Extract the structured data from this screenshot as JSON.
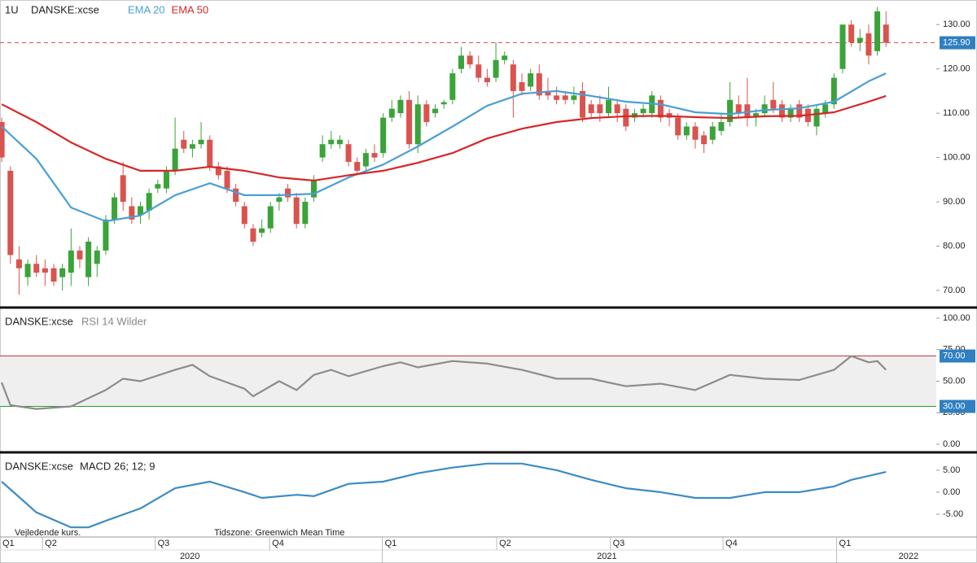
{
  "chart_data": [
    {
      "type": "candlestick",
      "period": "1U",
      "symbol": "DANSKE:xcse",
      "up_color": "#3aa33a",
      "down_color": "#d9534f",
      "xlim": [
        -0.2,
        107.8
      ],
      "ylim": [
        66.5,
        135
      ],
      "yticks": [
        {
          "value": 70,
          "label": "70.00"
        },
        {
          "value": 80,
          "label": "80.00"
        },
        {
          "value": 90,
          "label": "90.00"
        },
        {
          "value": 100,
          "label": "100.00"
        },
        {
          "value": 110,
          "label": "110.00"
        },
        {
          "value": 120,
          "label": "120.00"
        },
        {
          "value": 130,
          "label": "130.00"
        }
      ],
      "last_price": {
        "value": 125.9,
        "label": "125.90"
      },
      "last_price_color": "#2f7fc1",
      "last_price_line_color": "#d9534f",
      "candles": [
        [
          108,
          109,
          99,
          100
        ],
        [
          97,
          98,
          76,
          78
        ],
        [
          77,
          80,
          69,
          75
        ],
        [
          73,
          77,
          71,
          76
        ],
        [
          76,
          78,
          73,
          74
        ],
        [
          75,
          77,
          71,
          74
        ],
        [
          75,
          76,
          71,
          72
        ],
        [
          73,
          76,
          70,
          75
        ],
        [
          74,
          84,
          71,
          79
        ],
        [
          79,
          80,
          75,
          77
        ],
        [
          73,
          82,
          71,
          81
        ],
        [
          76,
          80,
          73,
          79
        ],
        [
          79,
          87,
          78,
          86
        ],
        [
          86,
          92,
          85,
          91
        ],
        [
          96,
          99,
          88,
          90
        ],
        [
          89,
          91,
          85,
          86
        ],
        [
          87,
          90,
          85,
          89
        ],
        [
          88,
          93,
          86,
          92
        ],
        [
          93,
          95,
          92,
          94
        ],
        [
          93,
          98,
          92,
          97
        ],
        [
          97,
          109,
          96,
          102
        ],
        [
          104,
          106,
          101,
          102
        ],
        [
          102,
          104,
          100,
          103
        ],
        [
          103,
          108,
          102,
          104
        ],
        [
          104,
          105,
          97,
          98
        ],
        [
          98,
          99,
          95,
          96
        ],
        [
          97,
          98,
          92,
          93
        ],
        [
          93,
          94,
          89,
          90
        ],
        [
          89,
          90,
          84,
          85
        ],
        [
          84,
          85,
          80,
          81
        ],
        [
          83,
          86,
          82,
          84
        ],
        [
          84,
          90,
          83,
          89
        ],
        [
          90,
          92,
          88,
          91
        ],
        [
          93,
          94,
          90,
          91
        ],
        [
          91,
          92,
          84,
          85
        ],
        [
          85,
          91,
          84,
          90
        ],
        [
          91,
          96,
          90,
          95
        ],
        [
          100,
          105,
          99,
          103
        ],
        [
          103,
          106,
          102,
          104
        ],
        [
          103,
          105,
          102,
          104
        ],
        [
          103,
          104,
          98,
          99
        ],
        [
          99,
          100,
          96,
          97
        ],
        [
          98,
          102,
          97,
          101
        ],
        [
          101,
          103,
          99,
          100
        ],
        [
          101,
          110,
          100,
          109
        ],
        [
          109,
          113,
          108,
          111
        ],
        [
          110,
          114,
          109,
          113
        ],
        [
          113,
          115,
          102,
          103
        ],
        [
          103,
          114,
          101,
          112
        ],
        [
          112,
          113,
          107,
          108
        ],
        [
          110,
          112,
          109,
          111
        ],
        [
          112,
          113,
          111,
          112.5
        ],
        [
          113,
          120,
          112,
          119
        ],
        [
          120,
          125,
          119,
          123
        ],
        [
          123,
          124,
          120,
          121
        ],
        [
          121,
          123,
          117,
          118
        ],
        [
          118,
          120,
          116,
          117
        ],
        [
          118,
          126,
          117,
          122
        ],
        [
          122,
          124,
          121,
          123
        ],
        [
          121,
          122,
          109,
          115
        ],
        [
          117,
          119,
          114,
          115
        ],
        [
          116,
          120,
          115,
          119
        ],
        [
          119,
          121,
          113,
          114
        ],
        [
          115,
          118,
          113,
          114
        ],
        [
          114,
          116,
          112,
          113
        ],
        [
          114,
          115,
          112,
          113
        ],
        [
          113,
          116,
          112,
          114
        ],
        [
          115,
          117,
          108,
          109
        ],
        [
          112,
          113,
          109,
          110
        ],
        [
          112,
          114,
          108,
          110
        ],
        [
          110,
          116,
          109,
          113
        ],
        [
          112,
          113,
          108,
          110
        ],
        [
          111,
          112,
          106,
          107
        ],
        [
          109,
          111,
          108,
          110
        ],
        [
          110,
          112,
          109,
          111
        ],
        [
          110,
          115,
          109,
          114
        ],
        [
          113,
          114,
          108,
          109
        ],
        [
          110,
          111,
          107,
          109
        ],
        [
          109,
          110,
          104,
          105
        ],
        [
          105,
          108,
          104,
          107
        ],
        [
          107,
          108,
          102,
          104
        ],
        [
          105,
          106,
          101,
          103
        ],
        [
          104,
          108,
          103,
          107
        ],
        [
          106,
          110,
          105,
          108
        ],
        [
          108,
          117,
          107,
          113
        ],
        [
          112,
          114,
          109,
          110
        ],
        [
          112,
          118,
          107,
          109
        ],
        [
          109,
          111,
          107,
          110
        ],
        [
          110,
          114,
          109,
          112
        ],
        [
          113,
          117,
          110,
          111
        ],
        [
          112,
          113,
          108,
          109
        ],
        [
          109,
          112,
          108,
          111
        ],
        [
          112,
          113,
          108,
          109
        ],
        [
          111,
          112,
          107,
          108
        ],
        [
          107,
          112,
          105,
          111
        ],
        [
          110,
          113,
          109,
          112
        ],
        [
          112,
          119,
          111,
          118
        ],
        [
          120,
          130,
          119,
          130
        ],
        [
          130,
          131,
          125,
          126
        ],
        [
          126,
          129,
          124,
          127
        ],
        [
          128,
          130,
          121,
          123
        ],
        [
          124,
          134,
          123,
          133
        ],
        [
          130,
          133,
          125,
          125.9
        ]
      ],
      "series": [
        {
          "name": "EMA 20",
          "color": "#4a9fd5",
          "x": [
            0,
            4,
            8,
            12,
            16,
            20,
            24,
            28,
            32,
            36,
            40,
            44,
            48,
            52,
            56,
            60,
            64,
            68,
            72,
            76,
            80,
            84,
            88,
            92,
            96,
            100,
            102
          ],
          "values": [
            107,
            99.7,
            88.7,
            85.6,
            86.9,
            91.5,
            94.2,
            91.5,
            91.5,
            91.8,
            95.5,
            98.4,
            102.5,
            107,
            111.7,
            114.4,
            115,
            113.9,
            112.6,
            112,
            110.2,
            109.8,
            110.7,
            111.1,
            112.6,
            117.2,
            119
          ]
        },
        {
          "name": "EMA 50",
          "color": "#d62728",
          "x": [
            0,
            4,
            8,
            12,
            16,
            20,
            24,
            28,
            32,
            36,
            40,
            44,
            48,
            52,
            56,
            60,
            64,
            68,
            72,
            76,
            80,
            84,
            88,
            92,
            96,
            100,
            102
          ],
          "values": [
            112,
            108,
            103.4,
            99.7,
            97,
            97,
            97.9,
            97,
            95.5,
            94.8,
            96,
            97,
            98.8,
            101,
            104.3,
            106.5,
            108,
            108.9,
            109.3,
            109.4,
            109.1,
            108.9,
            109.3,
            109.4,
            110.2,
            112.6,
            113.9
          ]
        }
      ]
    },
    {
      "type": "line",
      "symbol": "DANSKE:xcse",
      "title": "RSI 14 Wilder",
      "xlim": [
        -0.2,
        107.8
      ],
      "ylim": [
        -4.5,
        106.5
      ],
      "yticks": [
        {
          "value": 0,
          "label": "0.00"
        },
        {
          "value": 25,
          "label": "25.00"
        },
        {
          "value": 50,
          "label": "50.00"
        },
        {
          "value": 75,
          "label": "75.00"
        },
        {
          "value": 100,
          "label": "100.00"
        }
      ],
      "band_color": "#efefef",
      "levels": [
        {
          "value": 70,
          "label": "70.00",
          "color": "#c0392b"
        },
        {
          "value": 30,
          "label": "30.00",
          "color": "#2a9d2a"
        }
      ],
      "series": [
        {
          "color": "#8c8c8c",
          "x": [
            0,
            1,
            4,
            8,
            12,
            14,
            16,
            20,
            22,
            24,
            28,
            29,
            32,
            34,
            36,
            38,
            40,
            44,
            46,
            48,
            52,
            56,
            60,
            64,
            68,
            72,
            76,
            80,
            84,
            88,
            92,
            96,
            98,
            100,
            101,
            102
          ],
          "values": [
            49,
            31,
            28,
            30,
            43,
            52,
            50,
            59,
            63,
            54,
            44,
            38,
            50,
            43,
            55,
            59,
            54,
            62,
            65,
            61,
            66,
            64,
            59,
            52,
            52,
            46,
            48,
            43,
            55,
            52,
            51,
            59,
            70,
            65,
            66,
            59
          ]
        }
      ]
    },
    {
      "type": "line",
      "symbol": "DANSKE:xcse",
      "title": "MACD 26; 12; 9",
      "xlim": [
        -0.2,
        107.8
      ],
      "ylim": [
        -10,
        8.5
      ],
      "yticks": [
        {
          "value": -5,
          "label": "-5.00"
        },
        {
          "value": 0,
          "label": "0.00"
        },
        {
          "value": 5,
          "label": "5.00"
        }
      ],
      "series": [
        {
          "color": "#3b8cc4",
          "x": [
            0,
            4,
            8,
            10,
            12,
            16,
            20,
            24,
            28,
            30,
            34,
            36,
            40,
            44,
            48,
            52,
            56,
            60,
            64,
            68,
            72,
            76,
            80,
            84,
            88,
            92,
            96,
            98,
            100,
            102
          ],
          "values": [
            2.4,
            -4.6,
            -8,
            -8,
            -6.5,
            -3.7,
            0.9,
            2.4,
            0,
            -1.3,
            -0.6,
            -0.9,
            1.9,
            2.4,
            4.3,
            5.6,
            6.5,
            6.5,
            5,
            2.8,
            0.9,
            0,
            -1.3,
            -1.3,
            0,
            0,
            1.3,
            2.8,
            3.7,
            4.6
          ]
        }
      ],
      "xticks": [
        {
          "value": -0.2,
          "label": "Q1"
        },
        {
          "value": 4.7,
          "label": "Q2"
        },
        {
          "value": 17.7,
          "label": "Q3"
        },
        {
          "value": 30.9,
          "label": "Q4"
        },
        {
          "value": 43.9,
          "label": "Q1"
        },
        {
          "value": 57.1,
          "label": "Q2"
        },
        {
          "value": 70.2,
          "label": "Q3"
        },
        {
          "value": 83.2,
          "label": "Q4"
        },
        {
          "value": 96.3,
          "label": "Q1"
        }
      ],
      "year_ticks": [
        {
          "value": 21.7,
          "label": "2020"
        },
        {
          "value": 69.8,
          "label": "2021"
        },
        {
          "value": 104.6,
          "label": "2022"
        }
      ],
      "notes": [
        "Vejledende kurs.",
        "Tidszone: Greenwich Mean Time"
      ]
    }
  ]
}
